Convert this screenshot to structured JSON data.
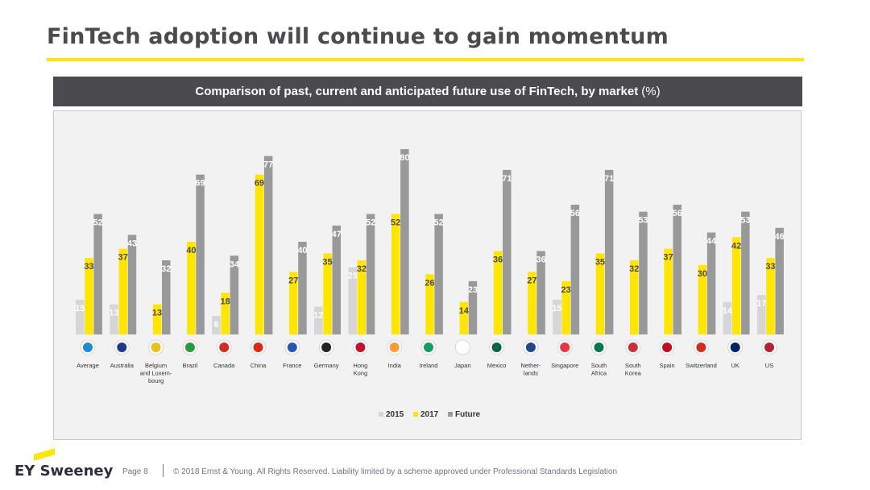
{
  "page": {
    "title": "FinTech adoption will continue to gain momentum",
    "brand": "EY Sweeney",
    "page_label": "Page 8",
    "copyright": "© 2018 Ernst & Young. All Rights Reserved. Liability limited by a scheme approved under Professional Standards Legislation"
  },
  "colors": {
    "accent": "#ffe600",
    "series_2015": "#d6d6d8",
    "series_2017": "#ffe600",
    "series_future": "#999999",
    "header_bg": "#4b4b4f"
  },
  "chart_data": {
    "type": "bar",
    "title": "Comparison of past, current and anticipated future use of FinTech, by market",
    "unit": "(%)",
    "categories": [
      "Average",
      "Australia",
      "Belgium and Luxembourg",
      "Brazil",
      "Canada",
      "China",
      "France",
      "Germany",
      "Hong Kong",
      "India",
      "Ireland",
      "Japan",
      "Mexico",
      "Netherlands",
      "Singapore",
      "South Africa",
      "South Korea",
      "Spain",
      "Switzerland",
      "UK",
      "US"
    ],
    "category_label_lines": [
      [
        "Average"
      ],
      [
        "Australia"
      ],
      [
        "Belgium",
        "and Luxem-",
        "bourg"
      ],
      [
        "Brazil"
      ],
      [
        "Canada"
      ],
      [
        "China"
      ],
      [
        "France"
      ],
      [
        "Germany"
      ],
      [
        "Hong",
        "Kong"
      ],
      [
        "India"
      ],
      [
        "Ireland"
      ],
      [
        "Japan"
      ],
      [
        "Mexico"
      ],
      [
        "Nether-",
        "lands"
      ],
      [
        "Singapore"
      ],
      [
        "South",
        "Africa"
      ],
      [
        "South",
        "Korea"
      ],
      [
        "Spain"
      ],
      [
        "Switzerland"
      ],
      [
        "UK"
      ],
      [
        "US"
      ]
    ],
    "flag_icons": [
      "globe-icon",
      "flag-australia-icon",
      "flag-belgium-icon",
      "flag-brazil-icon",
      "flag-canada-icon",
      "flag-china-icon",
      "flag-france-icon",
      "flag-germany-icon",
      "flag-hong-kong-icon",
      "flag-india-icon",
      "flag-ireland-icon",
      "flag-japan-icon",
      "flag-mexico-icon",
      "flag-netherlands-icon",
      "flag-singapore-icon",
      "flag-south-africa-icon",
      "flag-south-korea-icon",
      "flag-spain-icon",
      "flag-switzerland-icon",
      "flag-uk-icon",
      "flag-us-icon"
    ],
    "series": [
      {
        "name": "2015",
        "values": [
          15,
          13,
          null,
          null,
          8,
          null,
          null,
          12,
          29,
          null,
          null,
          null,
          null,
          null,
          15,
          null,
          null,
          null,
          null,
          14,
          17
        ]
      },
      {
        "name": "2017",
        "values": [
          33,
          37,
          13,
          40,
          18,
          69,
          27,
          35,
          32,
          52,
          26,
          14,
          36,
          27,
          23,
          35,
          32,
          37,
          30,
          42,
          33
        ]
      },
      {
        "name": "Future",
        "values": [
          52,
          43,
          32,
          69,
          34,
          77,
          40,
          47,
          52,
          80,
          52,
          23,
          71,
          36,
          56,
          71,
          53,
          56,
          44,
          53,
          46
        ]
      }
    ],
    "ylim": [
      0,
      80
    ],
    "grid": false,
    "legend_position": "bottom-center"
  }
}
